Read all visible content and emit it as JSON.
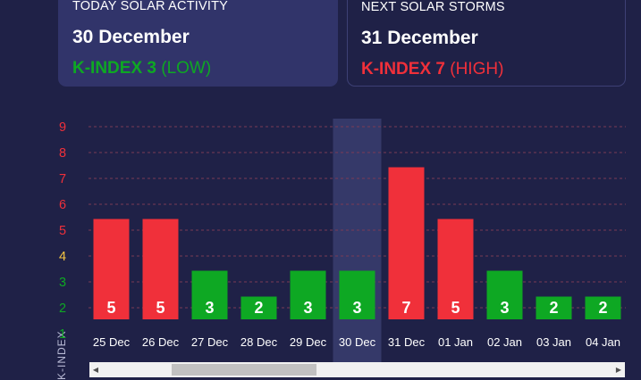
{
  "today_card": {
    "label": "TODAY SOLAR ACTIVITY",
    "date": "30 December",
    "kindex_label": "K-INDEX 3",
    "kindex_level": "(LOW)"
  },
  "next_card": {
    "label": "NEXT SOLAR STORMS",
    "date": "31 December",
    "kindex_label": "K-INDEX 7",
    "kindex_level": "(HIGH)"
  },
  "colors": {
    "low": "#0ea823",
    "medium": "#f5c542",
    "high": "#f0303a",
    "grid": "#7a3b55",
    "highlight": "#3a3d70"
  },
  "chart_data": {
    "type": "bar",
    "ylabel": "K-INDEX",
    "ylim": [
      1,
      9
    ],
    "ytick_labels": [
      "1",
      "2",
      "3",
      "4",
      "5",
      "6",
      "7",
      "8",
      "9"
    ],
    "categories": [
      "25 Dec",
      "26 Dec",
      "27 Dec",
      "28 Dec",
      "29 Dec",
      "30 Dec",
      "31 Dec",
      "01 Jan",
      "02 Jan",
      "03 Jan",
      "04 Jan"
    ],
    "values": [
      5,
      5,
      3,
      2,
      3,
      3,
      7,
      5,
      3,
      2,
      2
    ],
    "value_labels": [
      "5",
      "5",
      "3",
      "2",
      "3",
      "3",
      "7",
      "5",
      "3",
      "2",
      "2"
    ],
    "highlighted_category": "30 Dec",
    "grid": true
  },
  "scrollbar": {
    "left_arrow_icon": "◀",
    "right_arrow_icon": "▶"
  }
}
